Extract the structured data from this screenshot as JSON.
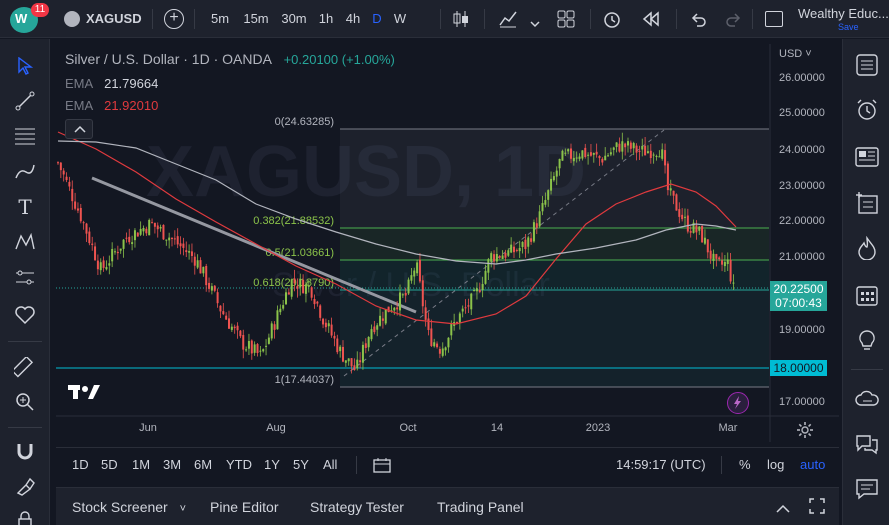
{
  "topbar": {
    "badge_count": "11",
    "symbol": "XAGUSD",
    "intervals": [
      "5m",
      "15m",
      "30m",
      "1h",
      "4h",
      "D",
      "W"
    ],
    "selected_interval": "D",
    "user_name": "Wealthy Educ...",
    "save_label": "Save"
  },
  "legend": {
    "title": "Silver / U.S. Dollar · 1D · OANDA",
    "change": "+0.20100 (+1.00%)",
    "ema1_label": "EMA",
    "ema1_value": "21.79664",
    "ema2_label": "EMA",
    "ema2_value": "21.92010",
    "watermark_symbol": "XAGUSD, 1D",
    "watermark_name": "Silver / U.S. Dollar"
  },
  "price_axis": {
    "currency": "USD",
    "labels": [
      "26.00000",
      "25.00000",
      "24.00000",
      "23.00000",
      "22.00000",
      "21.00000",
      "19.00000",
      "17.00000"
    ],
    "current_price": "20.22500",
    "countdown": "07:00:43",
    "line_label": "18.00000"
  },
  "time_axis": {
    "labels": [
      "Jun",
      "Aug",
      "Oct",
      "14",
      "2023",
      "Mar"
    ]
  },
  "fib": {
    "levels": [
      "0(24.63285)",
      "0.382(21.88532)",
      "0.5(21.03661)",
      "0.618(20.18790)",
      "1(17.44037)"
    ]
  },
  "timeframe_bar": {
    "ranges": [
      "1D",
      "5D",
      "1M",
      "3M",
      "6M",
      "YTD",
      "1Y",
      "5Y",
      "All"
    ],
    "clock": "14:59:17 (UTC)",
    "percent_label": "%",
    "log_label": "log",
    "auto_label": "auto"
  },
  "bottom_panel": {
    "tabs": [
      "Stock Screener",
      "Pine Editor",
      "Strategy Tester",
      "Trading Panel"
    ]
  },
  "colors": {
    "background": "#131722",
    "panel": "#1e222d",
    "up": "#26a69a",
    "up_candle": "#8bc34a",
    "down": "#ef5350",
    "accent": "#2962ff",
    "ema_fast": "#e03a3e",
    "ema_slow": "#b2b5be"
  }
}
